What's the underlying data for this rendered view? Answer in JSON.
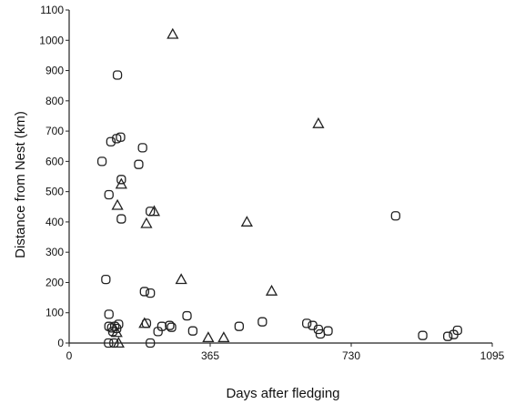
{
  "chart_data": {
    "type": "scatter",
    "title": "",
    "xlabel": "Days after fledging",
    "ylabel": "Distance from Nest (km)",
    "xlim": [
      0,
      1095
    ],
    "ylim": [
      0,
      1100
    ],
    "x_ticks": [
      0,
      365,
      730,
      1095
    ],
    "x_tick_labels": [
      "0",
      "365",
      "730",
      "1095"
    ],
    "y_ticks": [
      0,
      100,
      200,
      300,
      400,
      500,
      600,
      700,
      800,
      900,
      1000,
      1100
    ],
    "y_tick_labels": [
      "0",
      "100",
      "200",
      "300",
      "400",
      "500",
      "600",
      "700",
      "800",
      "900",
      "1000",
      "1100"
    ],
    "grid": false,
    "legend": "none",
    "series": [
      {
        "marker": "circle",
        "points": [
          [
            85,
            600
          ],
          [
            95,
            210
          ],
          [
            103,
            490
          ],
          [
            108,
            665
          ],
          [
            123,
            675
          ],
          [
            133,
            680
          ],
          [
            125,
            885
          ],
          [
            135,
            540
          ],
          [
            135,
            410
          ],
          [
            180,
            590
          ],
          [
            190,
            645
          ],
          [
            210,
            435
          ],
          [
            195,
            170
          ],
          [
            210,
            165
          ],
          [
            103,
            95
          ],
          [
            103,
            55
          ],
          [
            110,
            50
          ],
          [
            118,
            55
          ],
          [
            128,
            62
          ],
          [
            123,
            48
          ],
          [
            113,
            38
          ],
          [
            102,
            0
          ],
          [
            116,
            0
          ],
          [
            230,
            38
          ],
          [
            200,
            65
          ],
          [
            240,
            55
          ],
          [
            260,
            58
          ],
          [
            265,
            52
          ],
          [
            305,
            90
          ],
          [
            320,
            40
          ],
          [
            210,
            0
          ],
          [
            440,
            55
          ],
          [
            500,
            70
          ],
          [
            615,
            65
          ],
          [
            630,
            58
          ],
          [
            645,
            45
          ],
          [
            650,
            30
          ],
          [
            670,
            40
          ],
          [
            845,
            420
          ],
          [
            915,
            25
          ],
          [
            980,
            22
          ],
          [
            995,
            28
          ],
          [
            1005,
            42
          ]
        ]
      },
      {
        "marker": "triangle",
        "points": [
          [
            268,
            1020
          ],
          [
            645,
            725
          ],
          [
            135,
            525
          ],
          [
            460,
            400
          ],
          [
            125,
            455
          ],
          [
            200,
            395
          ],
          [
            220,
            435
          ],
          [
            290,
            210
          ],
          [
            524,
            172
          ],
          [
            195,
            65
          ],
          [
            123,
            35
          ],
          [
            128,
            0
          ],
          [
            360,
            18
          ],
          [
            400,
            18
          ]
        ]
      }
    ]
  }
}
